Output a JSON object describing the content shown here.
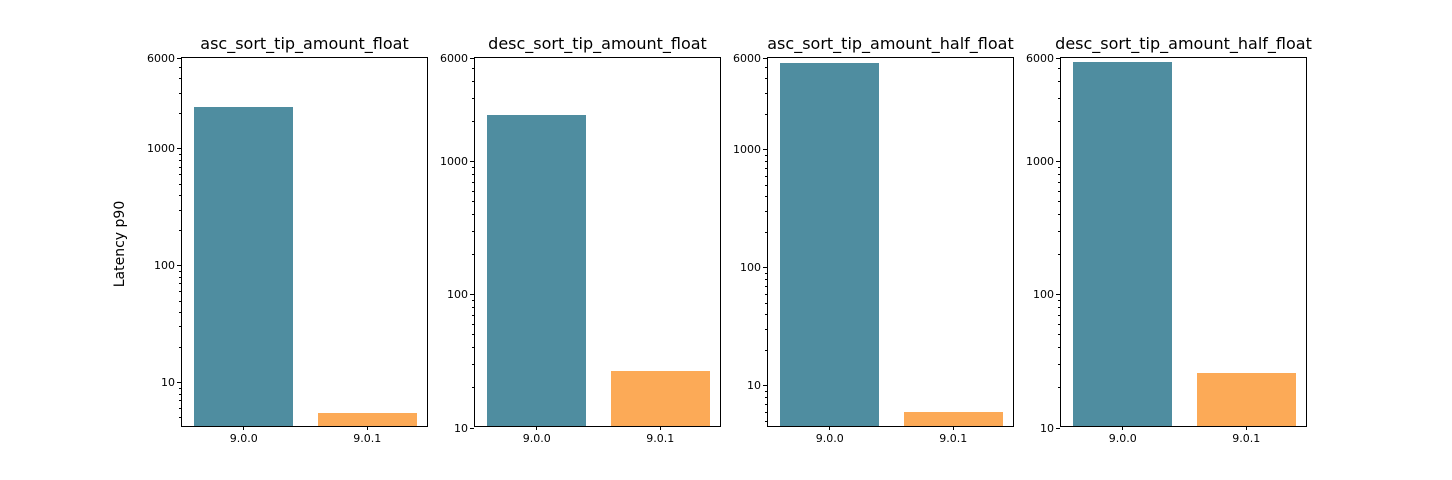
{
  "figure": {
    "background": "#ffffff",
    "spine_color": "#000000"
  },
  "chart_data": {
    "type": "bar",
    "yscale": "log",
    "ylabel": "Latency p90",
    "xlabel": "",
    "grid": false,
    "legend": "none",
    "categories": [
      "9.0.0",
      "9.0.1"
    ],
    "series_colors": {
      "9.0.0": "#4f8da0",
      "9.0.1": "#fcaa57"
    },
    "ytick_values": [
      10,
      100,
      1000,
      6000
    ],
    "ytick_labels": [
      "10",
      "100",
      "1000",
      "6000"
    ],
    "subplots": [
      {
        "title": "asc_sort_tip_amount_float",
        "values": [
          2300,
          5.5
        ],
        "ylim": [
          4.1,
          6000
        ]
      },
      {
        "title": "desc_sort_tip_amount_float",
        "values": [
          2250,
          27
        ],
        "ylim": [
          10,
          6000
        ]
      },
      {
        "title": "asc_sort_tip_amount_half_float",
        "values": [
          5400,
          6
        ],
        "ylim": [
          4.4,
          6000
        ]
      },
      {
        "title": "desc_sort_tip_amount_half_float",
        "values": [
          5600,
          26
        ],
        "ylim": [
          10,
          6000
        ]
      }
    ]
  }
}
